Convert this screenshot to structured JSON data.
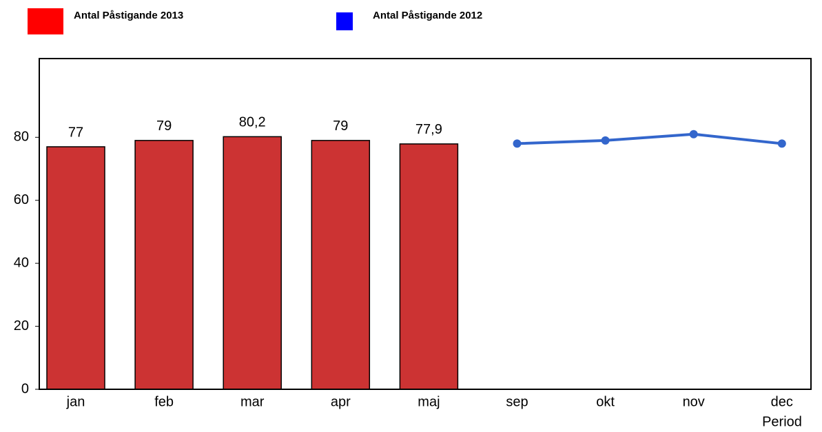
{
  "chart_data": {
    "type": "bar-line",
    "x_label": "Period",
    "categories": [
      "jan",
      "feb",
      "mar",
      "apr",
      "maj",
      "sep",
      "okt",
      "nov",
      "dec"
    ],
    "series": [
      {
        "name": "Antal Påstigande 2013",
        "type": "bar",
        "color": "#cc3333",
        "legend_color": "#ff0000",
        "values": [
          77,
          79,
          80.2,
          79,
          77.9,
          null,
          null,
          null,
          null
        ],
        "value_labels": [
          "77",
          "79",
          "80,2",
          "79",
          "77,9",
          null,
          null,
          null,
          null
        ]
      },
      {
        "name": "Antal Påstigande 2012",
        "type": "line",
        "color": "#3366cc",
        "legend_color": "#0000ff",
        "values": [
          null,
          null,
          null,
          null,
          null,
          78,
          79,
          81,
          78
        ]
      }
    ],
    "ylim": [
      0,
      105
    ],
    "yticks": [
      0,
      20,
      40,
      60,
      80
    ],
    "grid": false
  }
}
